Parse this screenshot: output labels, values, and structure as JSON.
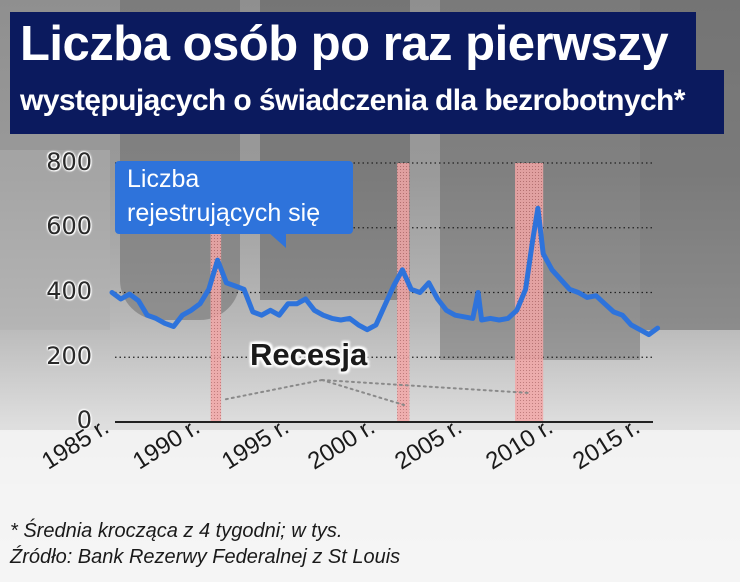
{
  "header": {
    "title_line1": "Liczba osób po raz pierwszy",
    "title_line2": "występujących o świadczenia dla bezrobotnych*"
  },
  "callout": {
    "line1": "Liczba",
    "line2": "rejestrujących się"
  },
  "recession_label": "Recesja",
  "footnotes": {
    "note": "* Średnia krocząca z 4 tygodni; w tys.",
    "source": "Źródło: Bank Rezerwy Federalnej z St Louis"
  },
  "colors": {
    "title_bg": "#0b1a5e",
    "line": "#2e73db",
    "recession_fill": "#f2a6a6",
    "callout_bg": "#2e73db"
  },
  "chart_data": {
    "type": "line",
    "title": "Liczba osób po raz pierwszy występujących o świadczenia dla bezrobotnych*",
    "xlabel": "",
    "ylabel": "",
    "ylim": [
      0,
      800
    ],
    "yticks": [
      0,
      200,
      400,
      600,
      800
    ],
    "xticks": [
      "1985 r.",
      "1990 r.",
      "1995 r.",
      "2000 r.",
      "2005 r.",
      "2010 r.",
      "2015 r."
    ],
    "grid": "horizontal dotted",
    "legend": "callout label 'Liczba rejestrujących się'",
    "series": [
      {
        "name": "Liczba rejestrujących się",
        "x": [
          1985.0,
          1985.5,
          1986.0,
          1986.5,
          1987.0,
          1987.5,
          1988.0,
          1988.5,
          1989.0,
          1989.5,
          1990.0,
          1990.5,
          1991.0,
          1991.5,
          1992.0,
          1992.5,
          1993.0,
          1993.5,
          1994.0,
          1994.5,
          1995.0,
          1995.5,
          1996.0,
          1996.5,
          1997.0,
          1997.5,
          1998.0,
          1998.5,
          1999.0,
          1999.5,
          2000.0,
          2000.5,
          2001.0,
          2001.5,
          2002.0,
          2002.5,
          2003.0,
          2003.5,
          2004.0,
          2004.5,
          2005.0,
          2005.5,
          2005.8,
          2006.0,
          2006.5,
          2007.0,
          2007.5,
          2008.0,
          2008.5,
          2008.9,
          2009.2,
          2009.5,
          2010.0,
          2010.5,
          2011.0,
          2011.5,
          2012.0,
          2012.5,
          2013.0,
          2013.5,
          2014.0,
          2014.5,
          2015.0,
          2015.5,
          2016.0
        ],
        "values": [
          400,
          380,
          395,
          375,
          330,
          320,
          305,
          295,
          330,
          345,
          365,
          410,
          500,
          430,
          420,
          410,
          340,
          330,
          345,
          330,
          365,
          365,
          380,
          345,
          330,
          320,
          315,
          320,
          300,
          285,
          300,
          360,
          420,
          470,
          410,
          400,
          430,
          380,
          345,
          330,
          325,
          320,
          400,
          315,
          320,
          315,
          320,
          345,
          410,
          560,
          660,
          520,
          470,
          440,
          410,
          400,
          385,
          390,
          365,
          340,
          330,
          300,
          285,
          270,
          290
        ]
      }
    ],
    "recessions": [
      {
        "start": 1990.6,
        "end": 1991.2
      },
      {
        "start": 2001.2,
        "end": 2001.9
      },
      {
        "start": 2007.9,
        "end": 2009.5
      }
    ],
    "units": "w tys. (thousands), 4-week moving average"
  }
}
